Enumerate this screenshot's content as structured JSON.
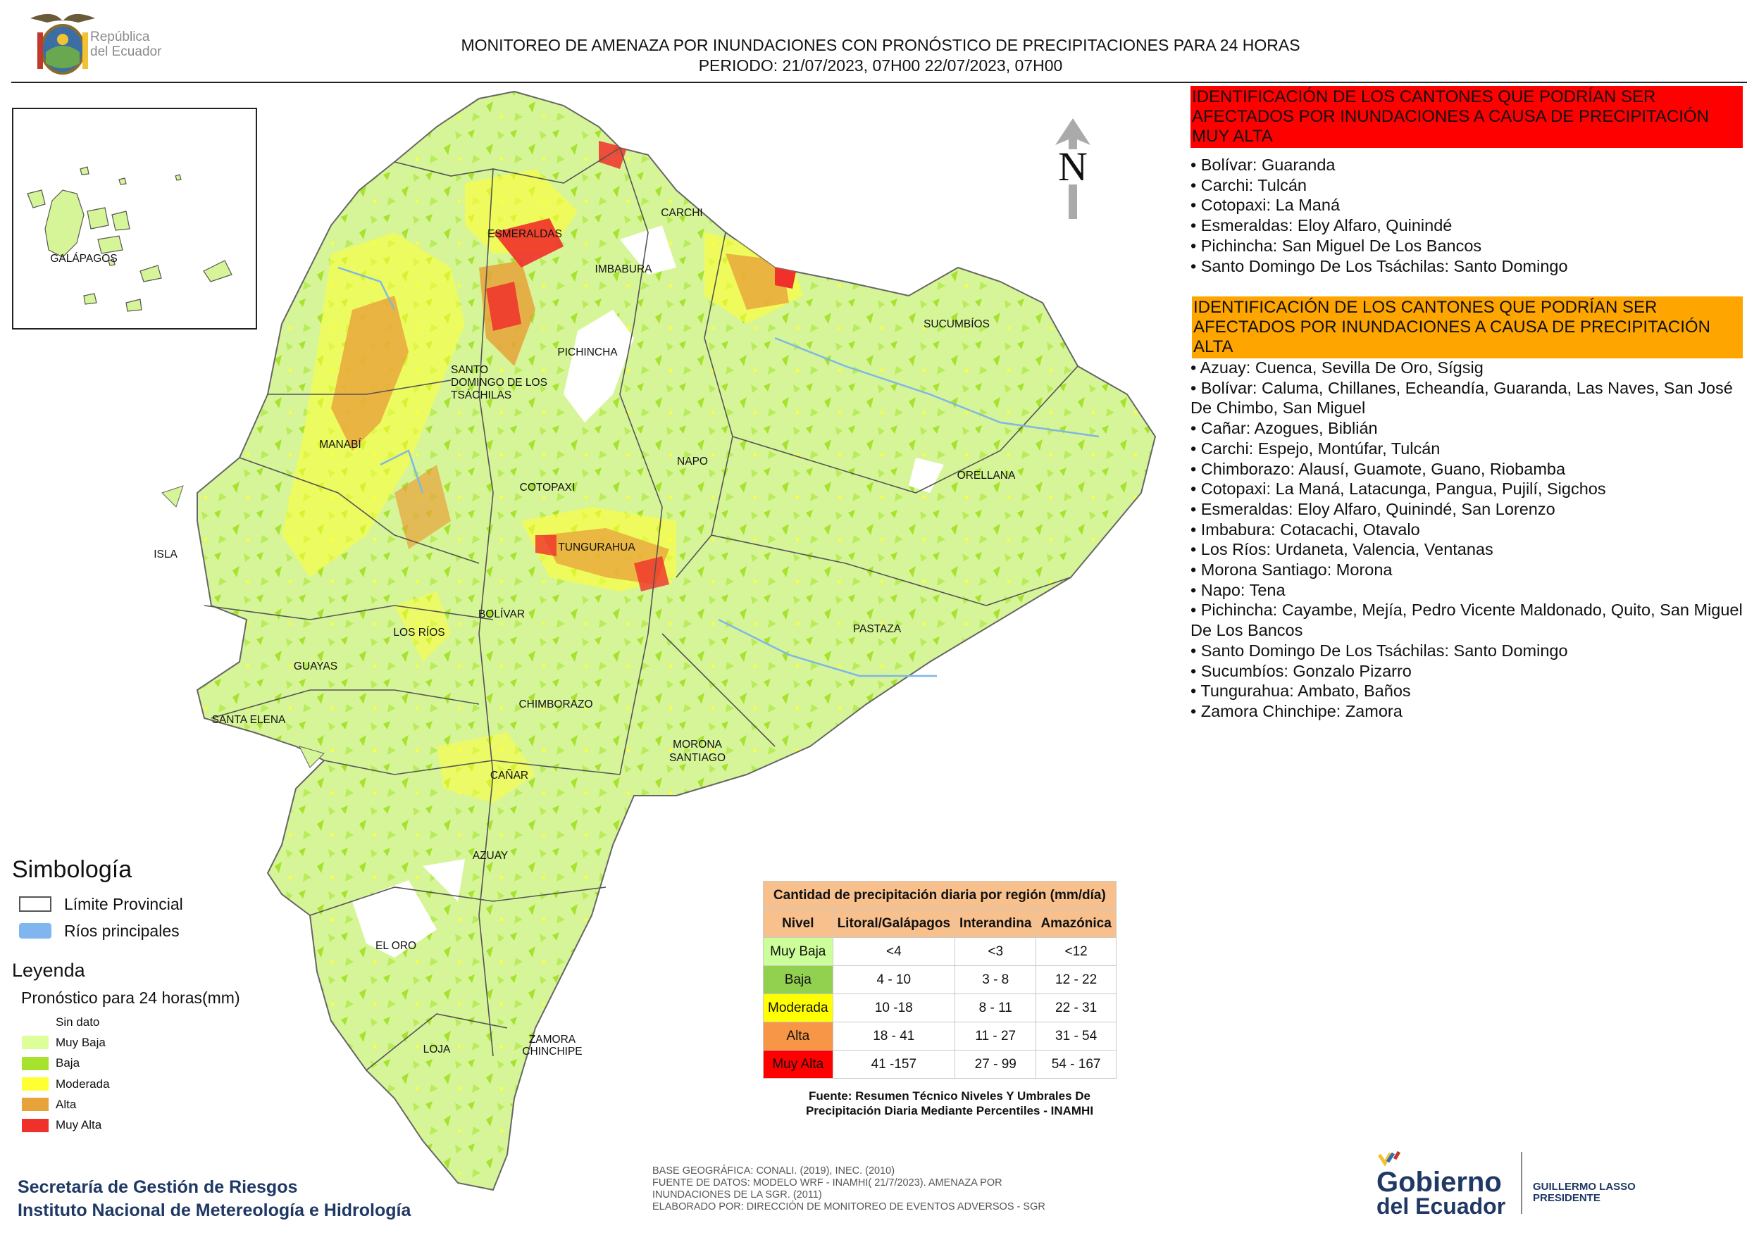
{
  "header": {
    "logo_text_line1": "República",
    "logo_text_line2": "del Ecuador",
    "title": "MONITOREO DE AMENAZA POR INUNDACIONES  CON PRONÓSTICO DE  PRECIPITACIONES PARA 24 HORAS",
    "period": "PERIODO: 21/07/2023, 07H00 22/07/2023, 07H00"
  },
  "north_label": "N",
  "inset": {
    "label": "GALÁPAGOS"
  },
  "map_labels": {
    "esmeraldas": "ESMERALDAS",
    "carchi": "CARCHI",
    "imbabura": "IMBABURA",
    "sucumbios": "SUCUMBÍOS",
    "pichincha": "PICHINCHA",
    "santo_domingo_1": "SANTO",
    "santo_domingo_2": "DOMINGO DE LOS",
    "santo_domingo_3": "TSÁCHILAS",
    "manabi": "MANABÍ",
    "napo": "NAPO",
    "orellana": "ORELLANA",
    "cotopaxi": "COTOPAXI",
    "tungurahua": "TUNGURAHUA",
    "isla": "ISLA",
    "bolivar": "BOLÍVAR",
    "los_rios": "LOS RÍOS",
    "pastaza": "PASTAZA",
    "guayas": "GUAYAS",
    "chimborazo": "CHIMBORAZO",
    "santa_elena": "SANTA ELENA",
    "morona_1": "MORONA",
    "morona_2": "SANTIAGO",
    "canar": "CAÑAR",
    "azuay": "AZUAY",
    "el_oro": "EL ORO",
    "zamora_1": "ZAMORA",
    "zamora_2": "CHINCHIPE",
    "loja": "LOJA"
  },
  "muy_alta": {
    "heading": "IDENTIFICACIÓN DE LOS CANTONES QUE PODRÍAN SER AFECTADOS POR INUNDACIONES  A CAUSA DE PRECIPITACIÓN MUY ALTA",
    "items": [
      "• Bolívar: Guaranda",
      "• Carchi: Tulcán",
      "• Cotopaxi: La Maná",
      "• Esmeraldas: Eloy Alfaro, Quinindé",
      "• Pichincha: San Miguel De Los Bancos",
      "• Santo Domingo De Los Tsáchilas: Santo Domingo"
    ]
  },
  "alta": {
    "heading": "IDENTIFICACIÓN DE LOS CANTONES QUE  PODRÍAN SER AFECTADOS POR INUNDACIONES  A CAUSA DE PRECIPITACIÓN ALTA",
    "items": [
      "• Azuay: Cuenca, Sevilla De Oro, Sígsig",
      "• Bolívar: Caluma, Chillanes, Echeandía, Guaranda, Las Naves, San José De Chimbo, San Miguel",
      "• Cañar: Azogues, Biblián",
      "• Carchi: Espejo, Montúfar, Tulcán",
      "• Chimborazo: Alausí, Guamote, Guano, Riobamba",
      "• Cotopaxi: La Maná, Latacunga, Pangua, Pujilí, Sigchos",
      "• Esmeraldas: Eloy Alfaro, Quinindé, San Lorenzo",
      "• Imbabura: Cotacachi, Otavalo",
      "• Los Ríos: Urdaneta, Valencia, Ventanas",
      "• Morona Santiago: Morona",
      "• Napo: Tena",
      "• Pichincha: Cayambe, Mejía, Pedro Vicente Maldonado, Quito, San Miguel De Los Bancos",
      "• Santo Domingo De Los Tsáchilas: Santo Domingo",
      "• Sucumbíos: Gonzalo Pizarro",
      "• Tungurahua: Ambato, Baños",
      "• Zamora Chinchipe: Zamora"
    ]
  },
  "simbologia": {
    "title": "Simbología",
    "limite": "Límite Provincial",
    "rios": "Ríos principales",
    "leyenda_title": "Leyenda",
    "pronostico": "Pronóstico para 24 horas(mm)",
    "levels": [
      {
        "label": "Sin dato",
        "color": "#ffffff"
      },
      {
        "label": "Muy Baja",
        "color": "#dcff9a"
      },
      {
        "label": "Baja",
        "color": "#a6e22e"
      },
      {
        "label": "Moderada",
        "color": "#ffff33"
      },
      {
        "label": "Alta",
        "color": "#e8a23a"
      },
      {
        "label": "Muy Alta",
        "color": "#f0302a"
      }
    ]
  },
  "table": {
    "title": "Cantidad de precipitación diaria por región (mm/día)",
    "headers": [
      "Nivel",
      "Litoral/Galápagos",
      "Interandina",
      "Amazónica"
    ],
    "rows": [
      {
        "nivel": "Muy Baja",
        "color": "#ccff99",
        "litoral": "<4",
        "interandina": "<3",
        "amazonica": "<12"
      },
      {
        "nivel": "Baja",
        "color": "#92d050",
        "litoral": "4 - 10",
        "interandina": "3 - 8",
        "amazonica": "12 - 22"
      },
      {
        "nivel": "Moderada",
        "color": "#ffff00",
        "litoral": "10 -18",
        "interandina": "8 - 11",
        "amazonica": "22 - 31"
      },
      {
        "nivel": "Alta",
        "color": "#f79646",
        "litoral": "18 - 41",
        "interandina": "11 - 27",
        "amazonica": "31 - 54"
      },
      {
        "nivel": "Muy Alta",
        "color": "#ff0000",
        "litoral": "41 -157",
        "interandina": "27 - 99",
        "amazonica": "54 - 167"
      }
    ],
    "source_line1": "Fuente: Resumen Técnico Niveles Y Umbrales De",
    "source_line2": "Precipitación Diaria Mediante Percentiles - INAMHI"
  },
  "footer": {
    "org1": "Secretaría de Gestión de Riesgos",
    "org2": "Instituto Nacional de Metereología e Hidrología",
    "base": "BASE GEOGRÁFICA: CONALI. (2019), INEC. (2010)",
    "fuente1": "FUENTE DE DATOS: MODELO WRF - INAMHI( 21/7/2023).  AMENAZA POR",
    "fuente2": "INUNDACIONES DE LA SGR. (2011)",
    "elaborado": "ELABORADO POR: DIRECCIÓN DE MONITOREO DE EVENTOS ADVERSOS - SGR",
    "gob1": "Gobierno",
    "gob2": "del Ecuador",
    "president1": "GUILLERMO LASSO",
    "president2": "PRESIDENTE"
  }
}
